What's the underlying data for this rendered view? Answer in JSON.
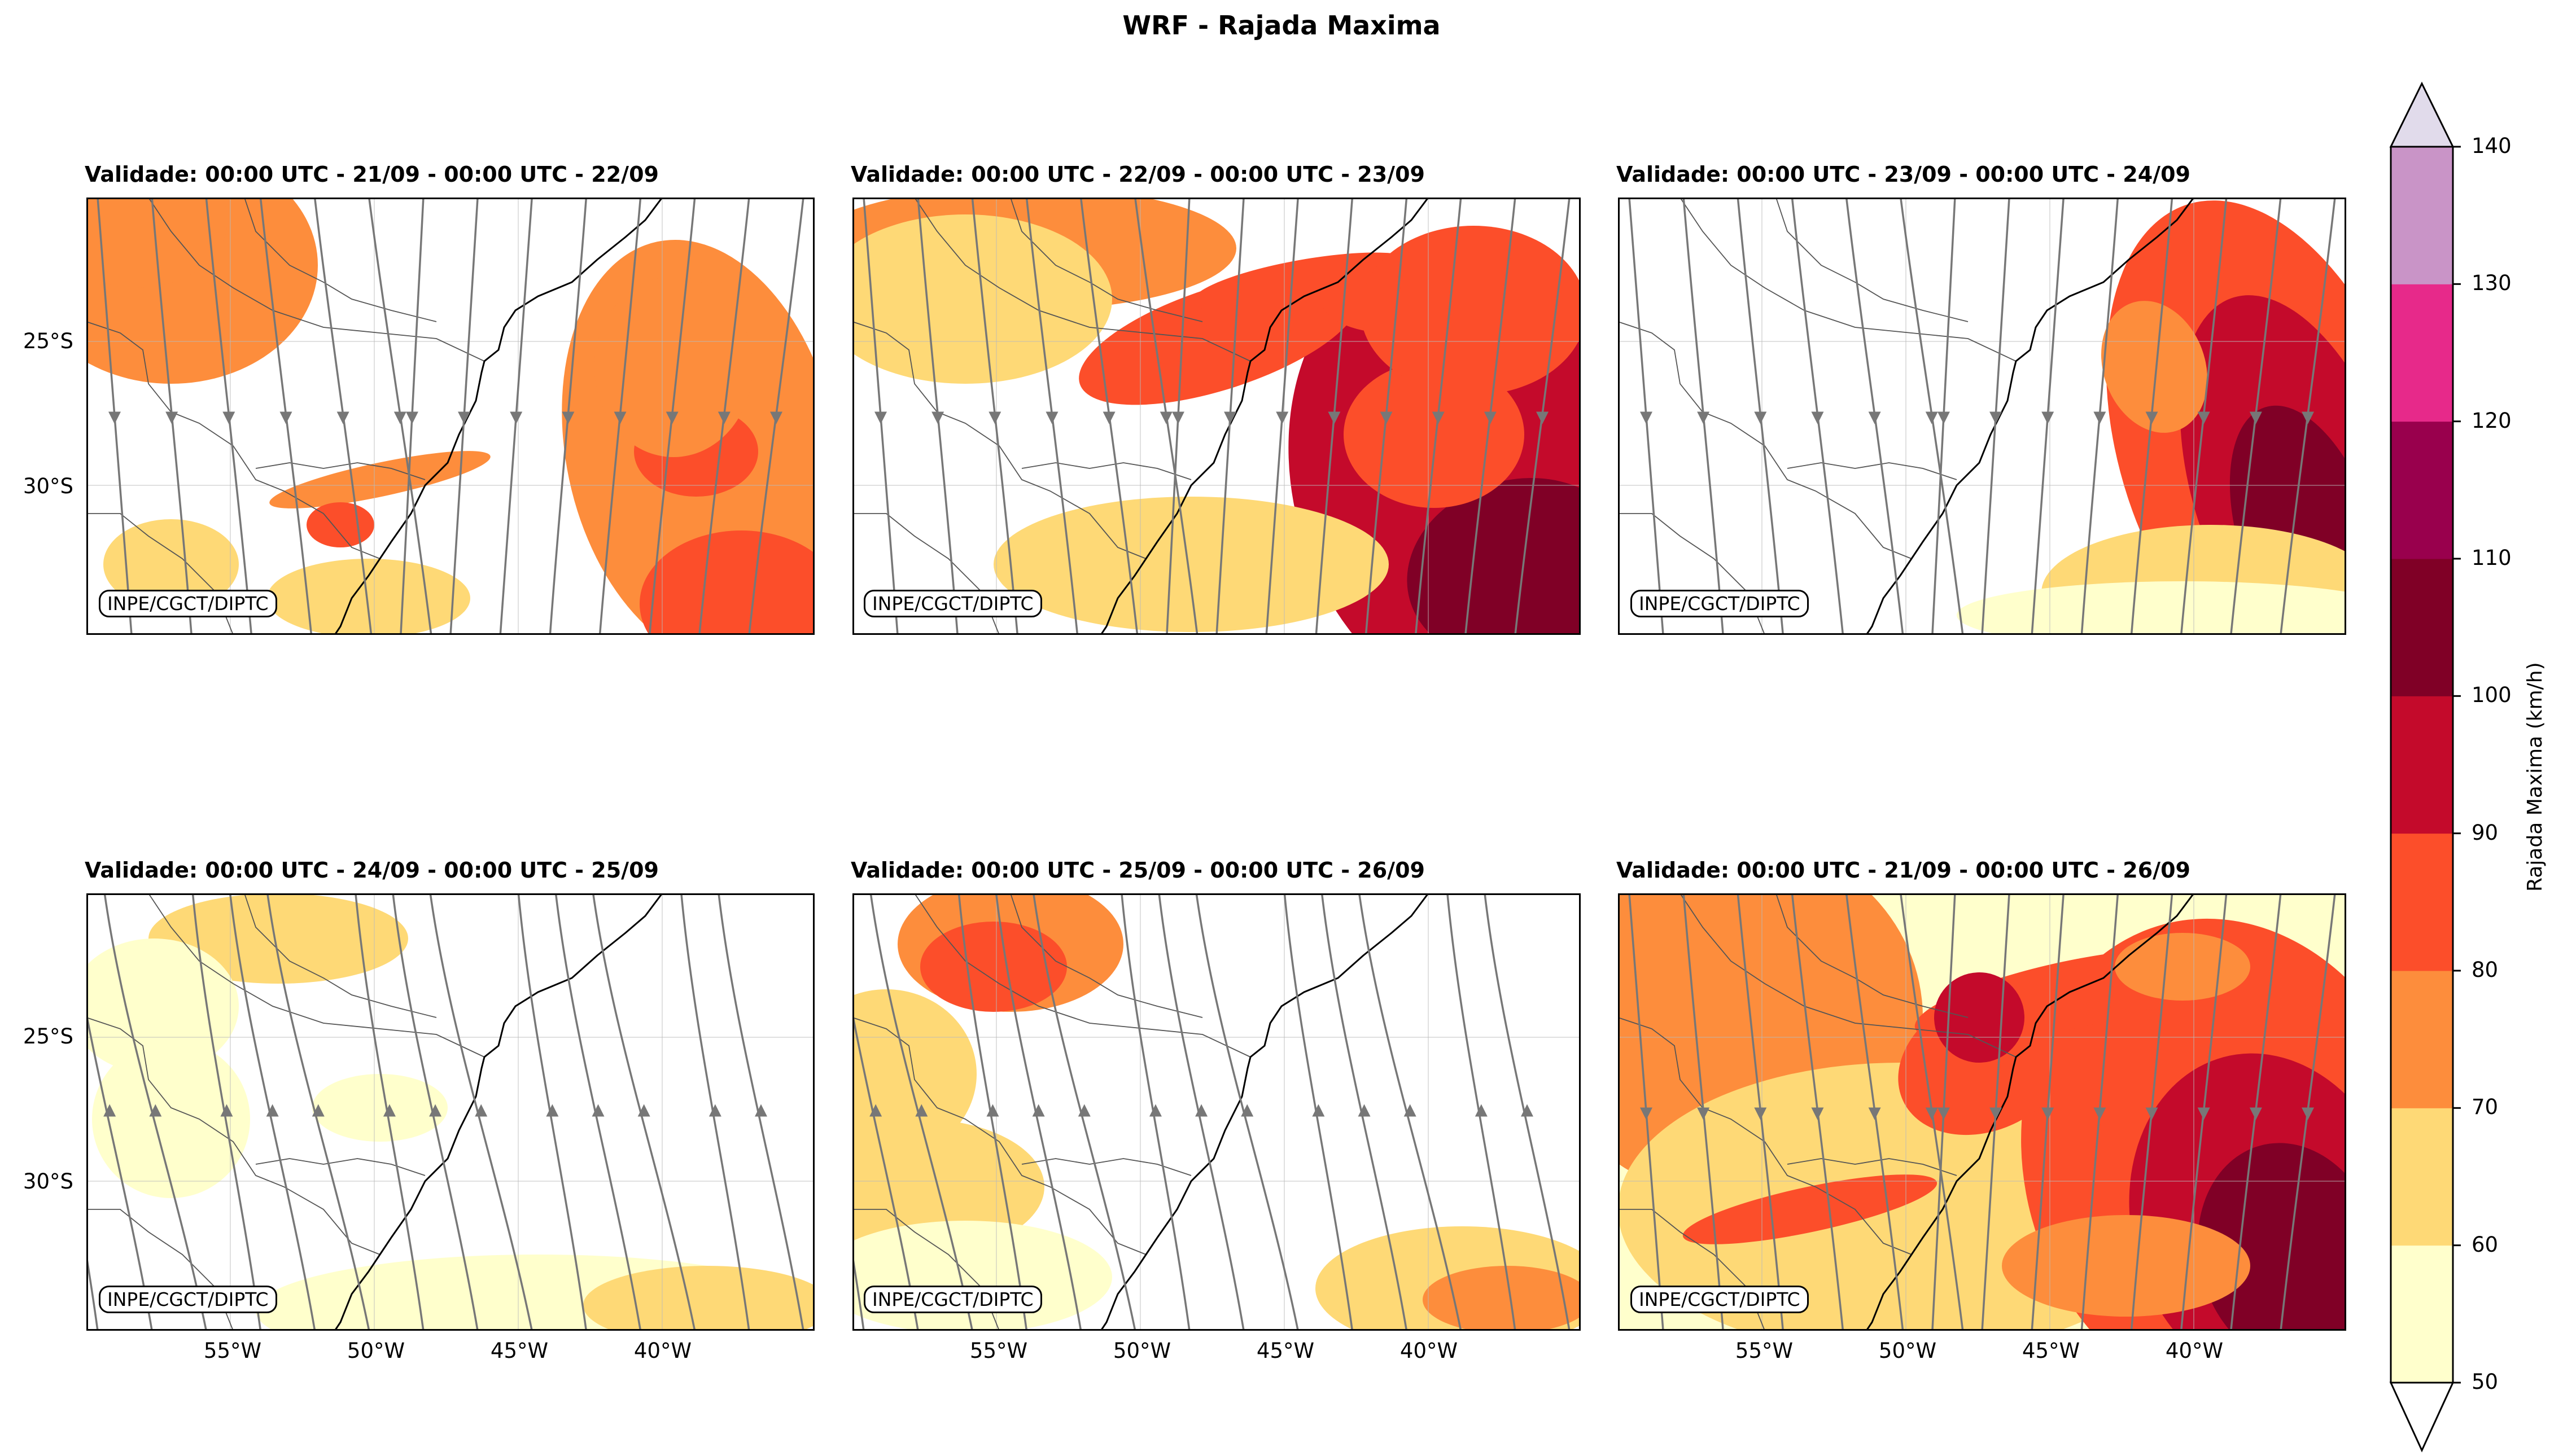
{
  "figure_title": "WRF - Rajada Maxima",
  "credit": "INPE/CGCT/DIPTC",
  "panels": [
    {
      "title": "Validade: 00:00 UTC - 21/09 - 00:00 UTC - 22/09"
    },
    {
      "title": "Validade: 00:00 UTC - 22/09 - 00:00 UTC - 23/09"
    },
    {
      "title": "Validade: 00:00 UTC - 23/09 - 00:00 UTC - 24/09"
    },
    {
      "title": "Validade: 00:00 UTC - 24/09 - 00:00 UTC - 25/09"
    },
    {
      "title": "Validade: 00:00 UTC - 25/09 - 00:00 UTC - 26/09"
    },
    {
      "title": "Validade: 00:00 UTC - 21/09 - 00:00 UTC - 26/09"
    }
  ],
  "lat_labels": [
    "25°S",
    "30°S"
  ],
  "lon_labels": [
    "55°W",
    "50°W",
    "45°W",
    "40°W"
  ],
  "colorbar": {
    "label": "Rajada Maxima (km/h)",
    "ticks": [
      "50",
      "60",
      "70",
      "80",
      "90",
      "100",
      "110",
      "120",
      "130",
      "140"
    ],
    "colors": [
      "#ffffcc",
      "#fed976",
      "#fd8d3c",
      "#fc4e2a",
      "#c40a2b",
      "#800026",
      "#99004d",
      "#e7298a",
      "#c994c7"
    ],
    "extend_over": "#e1dbeb",
    "extend_under": "#ffffff"
  }
}
